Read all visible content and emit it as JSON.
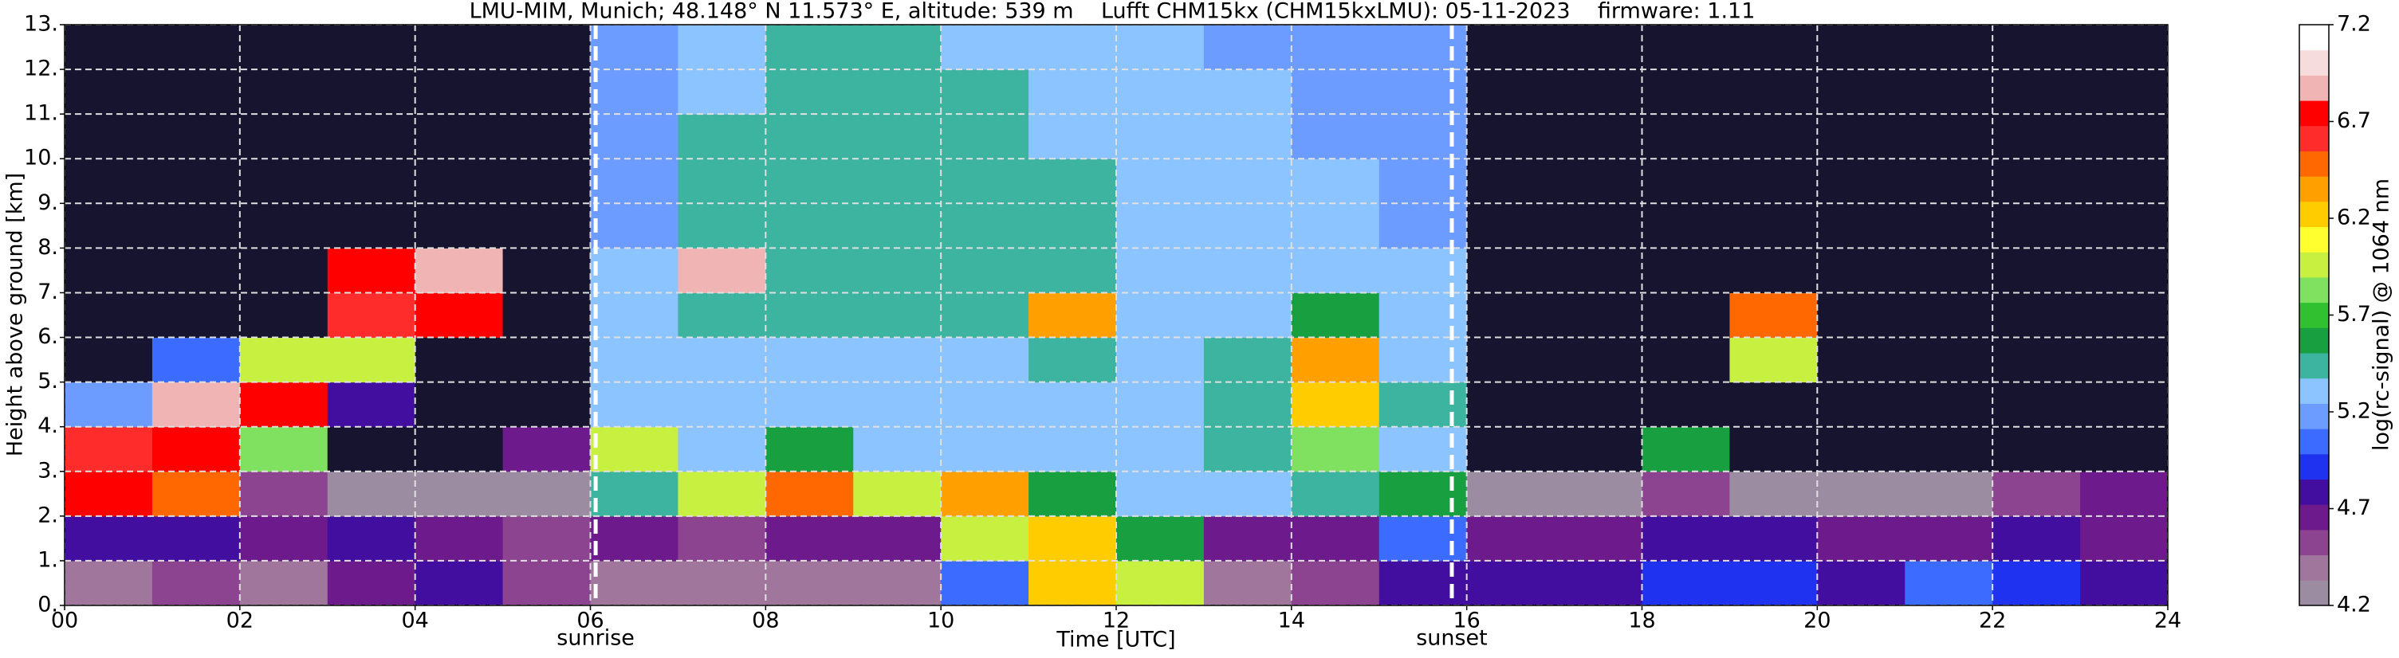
{
  "chart_data": {
    "type": "heatmap",
    "title": "LMU-MIM, Munich; 48.148° N 11.573° E, altitude: 539 m    Lufft CHM15kx (CHM15kxLMU): 05-11-2023    firmware: 1.11",
    "xlabel": "Time [UTC]",
    "ylabel": "Height above ground [km]",
    "xlim": [
      0,
      24
    ],
    "ylim": [
      0,
      13
    ],
    "xticks": [
      {
        "value": 0,
        "label": "00"
      },
      {
        "value": 2,
        "label": "02"
      },
      {
        "value": 4,
        "label": "04"
      },
      {
        "value": 6,
        "label": "06"
      },
      {
        "value": 8,
        "label": "08"
      },
      10,
      12,
      14,
      16,
      18,
      20,
      22,
      24
    ],
    "yticks": [
      {
        "value": 0,
        "label": "0."
      },
      {
        "value": 1,
        "label": "1."
      },
      {
        "value": 2,
        "label": "2."
      },
      {
        "value": 3,
        "label": "3."
      },
      {
        "value": 4,
        "label": "4."
      },
      {
        "value": 5,
        "label": "5."
      },
      {
        "value": 6,
        "label": "6."
      },
      {
        "value": 7,
        "label": "7."
      },
      {
        "value": 8,
        "label": "8."
      },
      {
        "value": 9,
        "label": "9."
      },
      {
        "value": 10,
        "label": "10."
      },
      {
        "value": 11,
        "label": "11."
      },
      {
        "value": 12,
        "label": "12."
      },
      {
        "value": 13,
        "label": "13."
      }
    ],
    "grid": true,
    "x": [
      0,
      1,
      2,
      3,
      4,
      5,
      6,
      7,
      8,
      9,
      10,
      11,
      12,
      13,
      14,
      15,
      16,
      17,
      18,
      19,
      20,
      21,
      22,
      23
    ],
    "y": [
      0,
      1,
      2,
      3,
      4,
      5,
      6,
      7,
      8,
      9,
      10,
      11,
      12
    ],
    "z": [
      [
        4.4,
        4.5,
        4.4,
        4.6,
        4.8,
        4.5,
        4.4,
        4.4,
        4.4,
        4.4,
        5.0,
        6.2,
        6.0,
        4.4,
        4.5,
        4.8,
        4.8,
        4.8,
        4.9,
        4.9,
        4.8,
        5.0,
        4.9,
        4.8
      ],
      [
        4.8,
        4.8,
        4.7,
        4.8,
        4.7,
        4.5,
        4.6,
        4.5,
        4.6,
        4.6,
        6.0,
        6.2,
        5.6,
        4.6,
        4.7,
        5.0,
        4.7,
        4.7,
        4.8,
        4.8,
        4.7,
        4.7,
        4.8,
        4.7
      ],
      [
        6.8,
        6.5,
        4.5,
        4.3,
        4.3,
        4.3,
        5.5,
        6.0,
        6.5,
        6.0,
        6.4,
        5.6,
        5.3,
        5.3,
        5.5,
        5.6,
        4.3,
        4.3,
        4.5,
        4.3,
        4.3,
        4.3,
        4.5,
        4.6
      ],
      [
        6.6,
        6.8,
        5.8,
        4.1,
        4.1,
        4.6,
        6.0,
        5.3,
        5.6,
        5.3,
        5.3,
        5.3,
        5.3,
        5.4,
        5.8,
        5.3,
        4.1,
        4.1,
        5.6,
        4.1,
        4.1,
        4.1,
        4.1,
        4.1
      ],
      [
        5.2,
        6.9,
        6.8,
        4.8,
        4.1,
        4.1,
        5.3,
        5.3,
        5.3,
        5.3,
        5.3,
        5.3,
        5.3,
        5.5,
        6.2,
        5.4,
        4.1,
        4.1,
        4.1,
        4.1,
        4.1,
        4.1,
        4.1,
        4.1
      ],
      [
        4.1,
        5.0,
        6.0,
        6.0,
        4.1,
        4.1,
        5.3,
        5.3,
        5.3,
        5.3,
        5.3,
        5.4,
        5.3,
        5.4,
        6.3,
        5.3,
        4.1,
        4.1,
        4.1,
        6.0,
        4.1,
        4.1,
        4.1,
        4.1
      ],
      [
        4.1,
        4.1,
        4.1,
        6.6,
        6.8,
        4.1,
        5.3,
        5.4,
        5.4,
        5.4,
        5.4,
        6.3,
        5.3,
        5.3,
        5.6,
        5.3,
        4.1,
        4.1,
        4.1,
        6.5,
        4.1,
        4.1,
        4.1,
        4.1
      ],
      [
        4.1,
        4.1,
        4.1,
        6.8,
        6.9,
        4.1,
        5.3,
        6.9,
        5.4,
        5.4,
        5.4,
        5.4,
        5.3,
        5.3,
        5.3,
        5.3,
        4.1,
        4.1,
        4.1,
        4.1,
        4.1,
        4.1,
        4.1,
        4.1
      ],
      [
        4.1,
        4.1,
        4.1,
        4.1,
        4.1,
        4.1,
        5.2,
        5.4,
        5.5,
        5.5,
        5.4,
        5.4,
        5.3,
        5.3,
        5.3,
        5.2,
        4.1,
        4.1,
        4.1,
        4.1,
        4.1,
        4.1,
        4.1,
        4.1
      ],
      [
        4.1,
        4.1,
        4.1,
        4.1,
        4.1,
        4.1,
        5.2,
        5.4,
        5.5,
        5.5,
        5.4,
        5.4,
        5.3,
        5.3,
        5.3,
        5.2,
        4.1,
        4.1,
        4.1,
        4.1,
        4.1,
        4.1,
        4.1,
        4.1
      ],
      [
        4.1,
        4.1,
        4.1,
        4.1,
        4.1,
        4.1,
        5.2,
        5.4,
        5.5,
        5.5,
        5.4,
        5.3,
        5.3,
        5.3,
        5.2,
        5.2,
        4.1,
        4.1,
        4.1,
        4.1,
        4.1,
        4.1,
        4.1,
        4.1
      ],
      [
        4.1,
        4.1,
        4.1,
        4.1,
        4.1,
        4.1,
        5.2,
        5.3,
        5.4,
        5.4,
        5.4,
        5.3,
        5.3,
        5.3,
        5.2,
        5.2,
        4.1,
        4.1,
        4.1,
        4.1,
        4.1,
        4.1,
        4.1,
        4.1
      ],
      [
        4.1,
        4.1,
        4.1,
        4.1,
        4.1,
        4.1,
        5.2,
        5.3,
        5.4,
        5.4,
        5.3,
        5.3,
        5.3,
        5.2,
        5.2,
        5.2,
        4.1,
        4.1,
        4.1,
        4.1,
        4.1,
        4.1,
        4.1,
        4.1
      ]
    ],
    "annotations": [
      {
        "text": "sunrise",
        "x": 6.06
      },
      {
        "text": "sunset",
        "x": 15.83
      }
    ],
    "colorbar": {
      "label": "log(rc-signal) @ 1064 nm",
      "lim": [
        4.2,
        7.2
      ],
      "ticks": [
        4.2,
        4.7,
        5.2,
        5.7,
        6.2,
        6.7,
        7.2
      ],
      "under_color": "#16142e",
      "colors": [
        "#9c8ca2",
        "#a0769c",
        "#8c4490",
        "#6c1a8c",
        "#420ea0",
        "#1e32f0",
        "#3c6cff",
        "#6c9cff",
        "#8cc4ff",
        "#3cb4a0",
        "#18a040",
        "#30c030",
        "#80e060",
        "#c8f040",
        "#ffff30",
        "#ffcc00",
        "#ffa000",
        "#ff6800",
        "#ff2c2c",
        "#ff0000",
        "#f0b4b4",
        "#f6dcdc",
        "#ffffff"
      ]
    }
  }
}
